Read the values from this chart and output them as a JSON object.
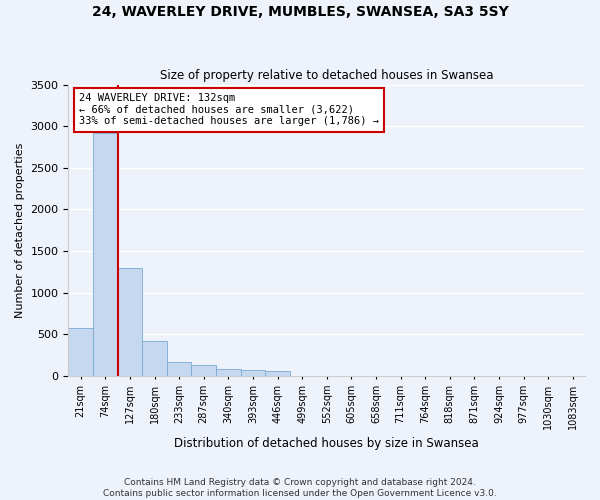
{
  "title": "24, WAVERLEY DRIVE, MUMBLES, SWANSEA, SA3 5SY",
  "subtitle": "Size of property relative to detached houses in Swansea",
  "xlabel": "Distribution of detached houses by size in Swansea",
  "ylabel": "Number of detached properties",
  "bin_labels": [
    "21sqm",
    "74sqm",
    "127sqm",
    "180sqm",
    "233sqm",
    "287sqm",
    "340sqm",
    "393sqm",
    "446sqm",
    "499sqm",
    "552sqm",
    "605sqm",
    "658sqm",
    "711sqm",
    "764sqm",
    "818sqm",
    "871sqm",
    "924sqm",
    "977sqm",
    "1030sqm",
    "1083sqm"
  ],
  "bar_heights": [
    570,
    2920,
    1300,
    420,
    160,
    130,
    80,
    65,
    55,
    0,
    0,
    0,
    0,
    0,
    0,
    0,
    0,
    0,
    0,
    0,
    0
  ],
  "bar_color": "#c5d8f0",
  "bar_edge_color": "#7aaad4",
  "annotation_line1": "24 WAVERLEY DRIVE: 132sqm",
  "annotation_line2": "← 66% of detached houses are smaller (3,622)",
  "annotation_line3": "33% of semi-detached houses are larger (1,786) →",
  "annotation_box_facecolor": "#ffffff",
  "annotation_box_edgecolor": "#cc0000",
  "red_line_bin_index": 2,
  "ylim": [
    0,
    3500
  ],
  "yticks": [
    0,
    500,
    1000,
    1500,
    2000,
    2500,
    3000,
    3500
  ],
  "background_color": "#eef2fb",
  "grid_color": "#ffffff",
  "footer_line1": "Contains HM Land Registry data © Crown copyright and database right 2024.",
  "footer_line2": "Contains public sector information licensed under the Open Government Licence v3.0."
}
